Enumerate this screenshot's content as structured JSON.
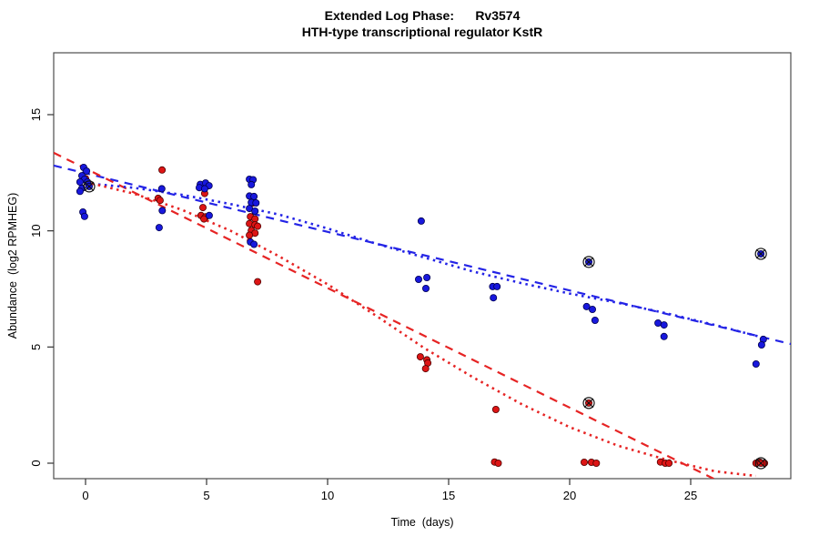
{
  "title": {
    "line1": "Extended Log Phase:      Rv3574",
    "line2": "HTH-type transcriptional regulator KstR"
  },
  "chart_data": {
    "type": "scatter",
    "xlabel": "Time  (days)",
    "ylabel": "Abundance  (log2 RPMHEG)",
    "x_ticks": [
      0,
      5,
      10,
      15,
      20,
      25
    ],
    "y_ticks": [
      0,
      5,
      10,
      15
    ],
    "xlim": [
      -1.316,
      29.135
    ],
    "ylim": [
      -0.666,
      17.663
    ],
    "grid": false,
    "legend": "none",
    "series": [
      {
        "name": "red",
        "color": "#dd1515",
        "edge_color": "#500000",
        "points": [
          [
            0.0,
            12.25
          ],
          [
            0.1,
            12.05
          ],
          [
            3.16,
            12.62
          ],
          [
            3.0,
            11.4
          ],
          [
            3.08,
            11.31
          ],
          [
            4.92,
            11.61
          ],
          [
            4.85,
            11.0
          ],
          [
            4.77,
            10.66
          ],
          [
            4.96,
            10.6
          ],
          [
            4.89,
            10.51
          ],
          [
            6.92,
            11.2
          ],
          [
            6.81,
            10.61
          ],
          [
            7.0,
            10.51
          ],
          [
            6.77,
            10.31
          ],
          [
            7.0,
            10.26
          ],
          [
            7.11,
            10.2
          ],
          [
            6.85,
            10.02
          ],
          [
            7.0,
            9.9
          ],
          [
            6.77,
            9.81
          ],
          [
            7.11,
            7.81
          ],
          [
            13.83,
            4.58
          ],
          [
            14.1,
            4.45
          ],
          [
            14.14,
            4.31
          ],
          [
            14.05,
            4.07
          ],
          [
            16.95,
            2.31
          ],
          [
            16.9,
            0.05
          ],
          [
            17.05,
            0.0
          ],
          [
            20.6,
            0.04
          ],
          [
            20.9,
            0.04
          ],
          [
            21.1,
            0.0
          ],
          [
            23.75,
            0.05
          ],
          [
            23.95,
            0.0
          ],
          [
            24.1,
            0.0
          ],
          [
            27.7,
            0.0
          ],
          [
            27.86,
            0.04
          ],
          [
            28.05,
            0.0
          ]
        ]
      },
      {
        "name": "blue",
        "color": "#1818dd",
        "edge_color": "#000050",
        "points": [
          [
            -0.08,
            12.73
          ],
          [
            0.04,
            12.57
          ],
          [
            -0.15,
            12.37
          ],
          [
            -0.04,
            12.22
          ],
          [
            -0.23,
            12.1
          ],
          [
            0.08,
            12.1
          ],
          [
            -0.15,
            11.83
          ],
          [
            -0.23,
            11.7
          ],
          [
            -0.11,
            10.81
          ],
          [
            -0.04,
            10.62
          ],
          [
            3.15,
            11.81
          ],
          [
            3.17,
            10.87
          ],
          [
            3.04,
            10.14
          ],
          [
            4.74,
            12.0
          ],
          [
            4.96,
            12.06
          ],
          [
            5.1,
            11.94
          ],
          [
            4.7,
            11.86
          ],
          [
            4.92,
            11.81
          ],
          [
            5.11,
            10.66
          ],
          [
            6.77,
            12.22
          ],
          [
            6.92,
            12.2
          ],
          [
            6.85,
            11.99
          ],
          [
            6.77,
            11.5
          ],
          [
            6.96,
            11.48
          ],
          [
            6.85,
            11.22
          ],
          [
            7.04,
            11.2
          ],
          [
            6.77,
            10.96
          ],
          [
            7.0,
            10.85
          ],
          [
            6.81,
            9.52
          ],
          [
            6.96,
            9.42
          ],
          [
            13.87,
            10.42
          ],
          [
            13.76,
            7.91
          ],
          [
            14.1,
            7.99
          ],
          [
            14.06,
            7.52
          ],
          [
            16.82,
            7.6
          ],
          [
            17.0,
            7.6
          ],
          [
            16.85,
            7.12
          ],
          [
            20.7,
            6.74
          ],
          [
            20.94,
            6.62
          ],
          [
            21.05,
            6.15
          ],
          [
            23.65,
            6.03
          ],
          [
            23.9,
            5.95
          ],
          [
            23.9,
            5.45
          ],
          [
            28.0,
            5.33
          ],
          [
            27.93,
            5.09
          ],
          [
            27.7,
            4.27
          ]
        ]
      }
    ],
    "circled_points": [
      {
        "series": "blue",
        "x": 0.15,
        "y": 11.91
      },
      {
        "series": "blue",
        "x": 20.79,
        "y": 8.66
      },
      {
        "series": "red",
        "x": 20.79,
        "y": 2.59
      },
      {
        "series": "blue",
        "x": 27.9,
        "y": 9.01
      },
      {
        "series": "red",
        "x": 27.9,
        "y": 0.0
      }
    ],
    "lines": [
      {
        "name": "blue-linear-fit",
        "series": "blue",
        "style": "dashed",
        "color": "#2424e6",
        "from": [
          -1.316,
          12.81
        ],
        "to": [
          29.135,
          5.13
        ]
      },
      {
        "name": "red-linear-fit",
        "series": "red",
        "style": "dashed",
        "color": "#e62424",
        "from": [
          -1.316,
          13.36
        ],
        "to": [
          26.3,
          -0.85
        ]
      },
      {
        "name": "blue-curve-fit",
        "series": "blue",
        "style": "dotted",
        "color": "#2424e6",
        "points": [
          [
            0,
            12.05
          ],
          [
            2,
            11.85
          ],
          [
            4,
            11.55
          ],
          [
            6,
            11.15
          ],
          [
            8,
            10.7
          ],
          [
            10,
            10.1
          ],
          [
            12,
            9.45
          ],
          [
            14,
            8.85
          ],
          [
            16,
            8.25
          ],
          [
            18,
            7.75
          ],
          [
            20,
            7.3
          ],
          [
            22,
            6.9
          ],
          [
            24,
            6.45
          ],
          [
            26,
            5.95
          ],
          [
            28,
            5.4
          ]
        ]
      },
      {
        "name": "red-curve-fit",
        "series": "red",
        "style": "dotted",
        "color": "#e62424",
        "points": [
          [
            0,
            12.1
          ],
          [
            2,
            11.6
          ],
          [
            4,
            10.9
          ],
          [
            6,
            10.0
          ],
          [
            8,
            8.9
          ],
          [
            10,
            7.7
          ],
          [
            12,
            6.35
          ],
          [
            14,
            4.95
          ],
          [
            16,
            3.7
          ],
          [
            18,
            2.55
          ],
          [
            20,
            1.55
          ],
          [
            22,
            0.75
          ],
          [
            24,
            0.15
          ],
          [
            26,
            -0.35
          ],
          [
            27.7,
            -0.55
          ]
        ]
      }
    ]
  }
}
